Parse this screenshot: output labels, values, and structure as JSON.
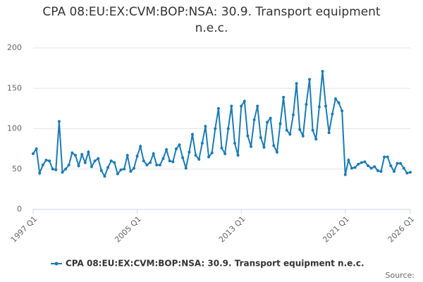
{
  "chart_data": {
    "type": "line",
    "title": "CPA 08:EU:EX:CVM:BOP:NSA: 30.9. Transport equipment n.e.c.",
    "source": "Source:",
    "categories": [
      "1997 Q1",
      null,
      null,
      null,
      null,
      null,
      null,
      null,
      null,
      null,
      null,
      null,
      null,
      null,
      null,
      null,
      null,
      null,
      null,
      null,
      null,
      null,
      null,
      null,
      null,
      null,
      null,
      null,
      null,
      null,
      null,
      null,
      "2005 Q1",
      null,
      null,
      null,
      null,
      null,
      null,
      null,
      null,
      null,
      null,
      null,
      null,
      null,
      null,
      null,
      null,
      null,
      null,
      null,
      null,
      null,
      null,
      null,
      null,
      null,
      null,
      null,
      null,
      null,
      null,
      null,
      "2013 Q1",
      null,
      null,
      null,
      null,
      null,
      null,
      null,
      null,
      null,
      null,
      null,
      null,
      null,
      null,
      null,
      null,
      null,
      null,
      null,
      null,
      null,
      null,
      null,
      null,
      null,
      null,
      null,
      null,
      null,
      null,
      null,
      "2021 Q1",
      null,
      null,
      null,
      null,
      null,
      null,
      null,
      null,
      null,
      null,
      null,
      null,
      null,
      null,
      null,
      null,
      null,
      null,
      null,
      "2026 Q1"
    ],
    "series": [
      {
        "name": "CPA 08:EU:EX:CVM:BOP:NSA: 30.9. Transport equipment n.e.c.",
        "color": "#1a7bb5",
        "values": [
          69,
          75,
          45,
          55,
          61,
          60,
          50,
          49,
          109,
          46,
          50,
          55,
          70,
          67,
          54,
          68,
          58,
          71,
          53,
          60,
          63,
          48,
          41,
          52,
          60,
          58,
          44,
          49,
          50,
          67,
          47,
          51,
          66,
          78,
          60,
          55,
          58,
          69,
          55,
          55,
          63,
          74,
          60,
          59,
          75,
          80,
          64,
          51,
          71,
          93,
          67,
          62,
          82,
          103,
          65,
          70,
          100,
          125,
          76,
          69,
          100,
          128,
          82,
          67,
          128,
          134,
          91,
          78,
          111,
          128,
          89,
          77,
          108,
          113,
          79,
          71,
          106,
          139,
          98,
          93,
          117,
          156,
          99,
          91,
          130,
          161,
          98,
          87,
          127,
          171,
          128,
          95,
          118,
          137,
          132,
          122,
          43,
          61,
          51,
          52,
          56,
          58,
          59,
          54,
          51,
          53,
          48,
          47,
          65,
          65,
          54,
          47,
          57,
          57,
          51,
          45,
          46
        ]
      }
    ],
    "ylim": [
      0,
      200
    ],
    "yticks": [
      0,
      50,
      100,
      150,
      200
    ],
    "grid": true
  }
}
